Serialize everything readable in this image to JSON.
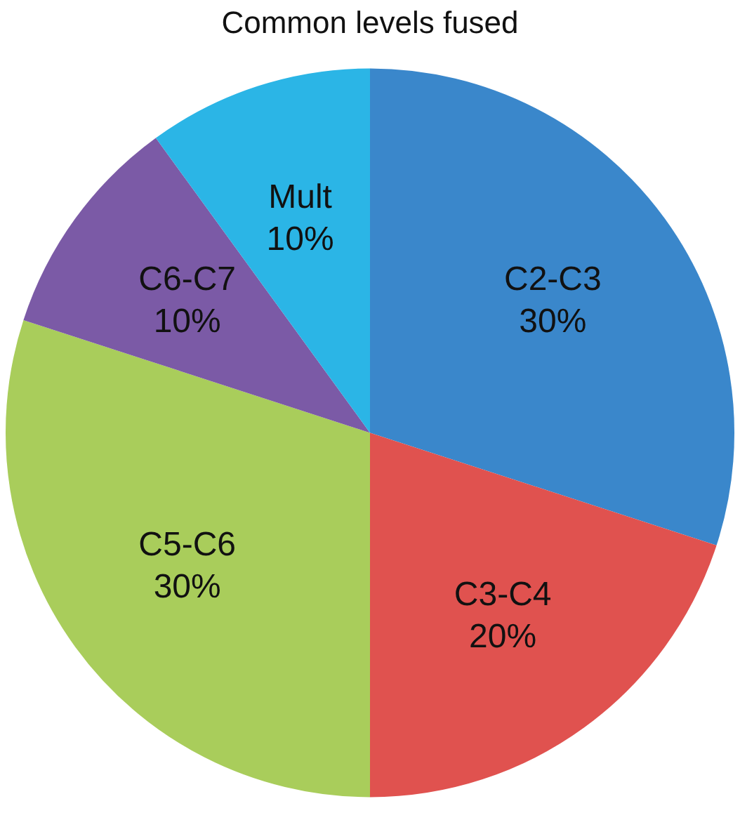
{
  "chart_data": {
    "type": "pie",
    "title": "Common levels fused",
    "categories": [
      "C2-C3",
      "C3-C4",
      "C5-C6",
      "C6-C7",
      "Mult"
    ],
    "values": [
      30,
      20,
      30,
      10,
      10
    ],
    "value_labels": [
      "30%",
      "20%",
      "30%",
      "10%",
      "10%"
    ],
    "colors": [
      "#3a87cb",
      "#e0524f",
      "#a9cd5b",
      "#7b5aa6",
      "#2bb5e6"
    ],
    "legend": false
  }
}
